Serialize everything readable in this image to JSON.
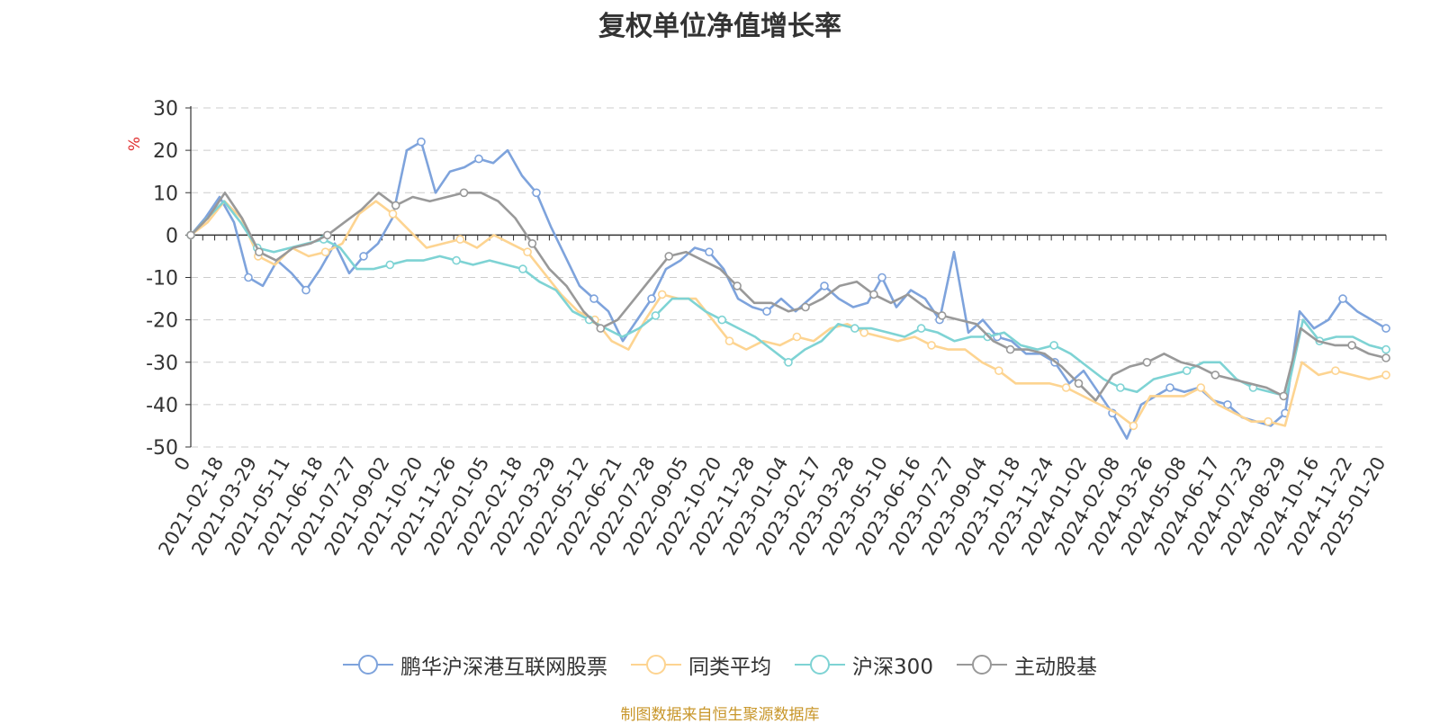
{
  "chart_data": {
    "type": "line",
    "title": "复权单位净值增长率",
    "ylabel": "%",
    "xlabel": "",
    "ylim": [
      -50,
      30
    ],
    "yticks": [
      30,
      20,
      10,
      0,
      -10,
      -20,
      -30,
      -40,
      -50
    ],
    "x_first_label": "0",
    "x_labels": [
      "2021-02-18",
      "2021-03-29",
      "2021-05-11",
      "2021-06-18",
      "2021-07-27",
      "2021-09-02",
      "2021-10-20",
      "2021-11-26",
      "2022-01-05",
      "2022-02-18",
      "2022-03-29",
      "2022-05-12",
      "2022-06-21",
      "2022-07-28",
      "2022-09-05",
      "2022-10-20",
      "2022-11-28",
      "2023-01-04",
      "2023-02-17",
      "2023-03-28",
      "2023-05-10",
      "2023-06-16",
      "2023-07-27",
      "2023-09-04",
      "2023-10-18",
      "2023-11-24",
      "2024-01-02",
      "2024-02-08",
      "2024-03-26",
      "2024-05-08",
      "2024-06-17",
      "2024-07-23",
      "2024-08-29",
      "2024-10-16",
      "2024-11-22",
      "2025-01-20"
    ],
    "grid": true,
    "legend_position": "bottom",
    "series": [
      {
        "name": "鹏华沪深港互联网股票",
        "color": "#7ea3dc",
        "values": [
          0,
          4,
          9,
          3,
          -10,
          -12,
          -6,
          -9,
          -13,
          -8,
          -2,
          -9,
          -5,
          -2,
          4,
          20,
          22,
          10,
          15,
          16,
          18,
          17,
          20,
          14,
          10,
          2,
          -5,
          -12,
          -15,
          -18,
          -25,
          -20,
          -15,
          -8,
          -6,
          -3,
          -4,
          -8,
          -15,
          -17,
          -18,
          -15,
          -18,
          -15,
          -12,
          -15,
          -17,
          -16,
          -10,
          -17,
          -13,
          -15,
          -20,
          -4,
          -23,
          -20,
          -24,
          -25,
          -28,
          -28,
          -30,
          -35,
          -32,
          -37,
          -42,
          -48,
          -40,
          -38,
          -36,
          -37,
          -36,
          -39,
          -40,
          -43,
          -44,
          -45,
          -42,
          -18,
          -22,
          -20,
          -15,
          -18,
          -20,
          -22
        ]
      },
      {
        "name": "同类平均",
        "color": "#fdd491",
        "values": [
          0,
          3,
          8,
          4,
          -5,
          -7,
          -3,
          -5,
          -4,
          -2,
          5,
          8,
          5,
          1,
          -3,
          -2,
          -1,
          -3,
          0,
          -2,
          -4,
          -9,
          -14,
          -18,
          -20,
          -25,
          -27,
          -20,
          -14,
          -15,
          -15,
          -20,
          -25,
          -27,
          -25,
          -26,
          -24,
          -25,
          -22,
          -21,
          -23,
          -24,
          -25,
          -24,
          -26,
          -27,
          -27,
          -30,
          -32,
          -35,
          -35,
          -35,
          -36,
          -38,
          -40,
          -42,
          -45,
          -38,
          -38,
          -38,
          -36,
          -40,
          -42,
          -44,
          -44,
          -45,
          -30,
          -33,
          -32,
          -33,
          -34,
          -33
        ]
      },
      {
        "name": "沪深300",
        "color": "#7ed3d4",
        "values": [
          0,
          4,
          8,
          3,
          -3,
          -4,
          -3,
          -2,
          -1,
          -3,
          -8,
          -8,
          -7,
          -6,
          -6,
          -5,
          -6,
          -7,
          -6,
          -7,
          -8,
          -11,
          -13,
          -18,
          -20,
          -22,
          -24,
          -22,
          -19,
          -15,
          -15,
          -18,
          -20,
          -22,
          -24,
          -27,
          -30,
          -27,
          -25,
          -21,
          -22,
          -22,
          -23,
          -24,
          -22,
          -23,
          -25,
          -24,
          -24,
          -23,
          -26,
          -27,
          -26,
          -28,
          -31,
          -34,
          -36,
          -37,
          -34,
          -33,
          -32,
          -30,
          -30,
          -34,
          -36,
          -37,
          -38,
          -20,
          -25,
          -24,
          -24,
          -26,
          -27
        ]
      },
      {
        "name": "主动股基",
        "color": "#999999",
        "values": [
          0,
          4,
          10,
          4,
          -4,
          -6,
          -3,
          -2,
          0,
          3,
          6,
          10,
          7,
          9,
          8,
          9,
          10,
          10,
          8,
          4,
          -2,
          -8,
          -12,
          -18,
          -22,
          -20,
          -15,
          -10,
          -5,
          -4,
          -6,
          -8,
          -12,
          -16,
          -16,
          -18,
          -17,
          -15,
          -12,
          -11,
          -14,
          -16,
          -14,
          -17,
          -19,
          -20,
          -21,
          -25,
          -27,
          -27,
          -28,
          -31,
          -35,
          -39,
          -33,
          -31,
          -30,
          -28,
          -30,
          -31,
          -33,
          -34,
          -35,
          -36,
          -38,
          -22,
          -25,
          -26,
          -26,
          -28,
          -29
        ]
      }
    ]
  },
  "legend": {
    "items": [
      "鹏华沪深港互联网股票",
      "同类平均",
      "沪深300",
      "主动股基"
    ]
  },
  "source_text": "制图数据来自恒生聚源数据库"
}
